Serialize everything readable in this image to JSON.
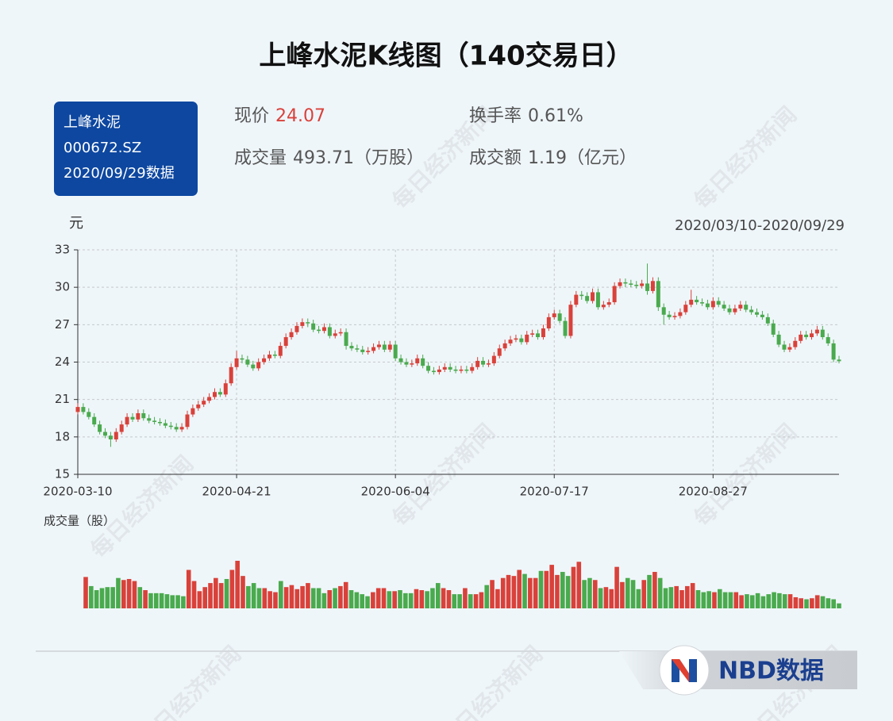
{
  "header": {
    "title": "上峰水泥K线图（140交易日）",
    "stock_name": "上峰水泥",
    "code": "000672.SZ",
    "data_date": "2020/09/29数据",
    "stats": [
      {
        "label": "现价",
        "value": "24.07"
      },
      {
        "label": "换手率",
        "value": "0.61%"
      },
      {
        "label": "成交量",
        "value": "493.71（万股）"
      },
      {
        "label": "成交额",
        "value": "1.19（亿元）"
      }
    ]
  },
  "watermark": "每日经济新闻",
  "logo": "NBD数据",
  "chart_data": {
    "type": "candlestick",
    "y_unit": "元",
    "date_range": "2020/03/10-2020/09/29",
    "up_color": "#d9413a",
    "down_color": "#4aaa4e",
    "grid": true,
    "ylim": [
      15,
      33
    ],
    "yticks": [
      15,
      18,
      21,
      24,
      27,
      30,
      33
    ],
    "categories": [
      "2020-03-10",
      null,
      null,
      null,
      null,
      null,
      null,
      null,
      null,
      null,
      null,
      null,
      null,
      null,
      null,
      null,
      null,
      null,
      null,
      null,
      null,
      null,
      null,
      null,
      null,
      null,
      null,
      null,
      null,
      "2020-04-21",
      null,
      null,
      null,
      null,
      null,
      null,
      null,
      null,
      null,
      null,
      null,
      null,
      null,
      null,
      null,
      null,
      null,
      null,
      null,
      null,
      null,
      null,
      null,
      null,
      null,
      null,
      null,
      null,
      "2020-06-04",
      null,
      null,
      null,
      null,
      null,
      null,
      null,
      null,
      null,
      null,
      null,
      null,
      null,
      null,
      null,
      null,
      null,
      null,
      null,
      null,
      null,
      null,
      null,
      null,
      null,
      null,
      null,
      null,
      "2020-07-17",
      null,
      null,
      null,
      null,
      null,
      null,
      null,
      null,
      null,
      null,
      null,
      null,
      null,
      null,
      null,
      null,
      null,
      null,
      null,
      null,
      null,
      null,
      null,
      null,
      null,
      null,
      null,
      null,
      "2020-08-27",
      null,
      null,
      null,
      null,
      null,
      null,
      null,
      null,
      null,
      null,
      null,
      null,
      null,
      null,
      null,
      null,
      null,
      null,
      null,
      null,
      null,
      null,
      null
    ],
    "open": [
      20.0,
      20.4,
      20.0,
      19.6,
      19.0,
      18.4,
      18.1,
      17.8,
      18.4,
      19.0,
      19.6,
      19.4,
      19.9,
      19.5,
      19.3,
      19.2,
      19.1,
      18.9,
      18.8,
      18.6,
      18.8,
      19.8,
      20.3,
      20.6,
      20.9,
      21.2,
      21.6,
      21.4,
      22.3,
      23.6,
      24.3,
      24.2,
      23.8,
      23.5,
      24.0,
      24.3,
      24.6,
      24.5,
      25.3,
      26.0,
      26.4,
      26.9,
      27.2,
      27.1,
      26.6,
      26.5,
      26.8,
      26.1,
      26.3,
      26.4,
      25.3,
      25.1,
      25.0,
      24.8,
      24.9,
      25.2,
      25.4,
      25.0,
      25.4,
      24.3,
      24.0,
      23.8,
      23.9,
      24.3,
      23.7,
      23.3,
      23.2,
      23.4,
      23.6,
      23.4,
      23.3,
      23.4,
      23.3,
      23.6,
      24.1,
      23.8,
      23.9,
      24.5,
      25.1,
      25.5,
      25.8,
      25.9,
      25.6,
      26.2,
      26.3,
      26.0,
      26.7,
      27.6,
      27.9,
      27.3,
      26.1,
      28.6,
      29.4,
      29.3,
      28.9,
      29.6,
      28.4,
      28.6,
      28.8,
      30.1,
      30.4,
      30.3,
      30.2,
      30.1,
      30.3,
      29.7,
      30.5,
      28.4,
      27.8,
      27.6,
      27.7,
      28.0,
      28.6,
      29.0,
      28.8,
      28.7,
      28.4,
      28.9,
      28.6,
      28.3,
      28.0,
      28.3,
      28.6,
      28.2,
      28.0,
      27.8,
      27.6,
      27.1,
      26.2,
      25.4,
      25.0,
      25.2,
      25.7,
      26.2,
      26.0,
      26.3,
      26.6,
      26.0,
      25.5,
      24.2
    ],
    "close": [
      20.4,
      20.0,
      19.6,
      19.0,
      18.4,
      18.1,
      17.8,
      18.4,
      19.0,
      19.6,
      19.4,
      19.9,
      19.5,
      19.3,
      19.2,
      19.1,
      18.9,
      18.8,
      18.6,
      18.8,
      19.8,
      20.3,
      20.6,
      20.9,
      21.2,
      21.6,
      21.4,
      22.3,
      23.6,
      24.3,
      24.2,
      23.8,
      23.5,
      24.0,
      24.3,
      24.6,
      24.5,
      25.3,
      26.0,
      26.4,
      26.9,
      27.2,
      27.1,
      26.6,
      26.5,
      26.8,
      26.1,
      26.3,
      26.4,
      25.3,
      25.1,
      25.0,
      24.8,
      24.9,
      25.2,
      25.4,
      25.0,
      25.4,
      24.3,
      24.0,
      23.8,
      23.9,
      24.3,
      23.7,
      23.3,
      23.2,
      23.4,
      23.6,
      23.4,
      23.3,
      23.4,
      23.3,
      23.6,
      24.1,
      23.8,
      23.9,
      24.5,
      25.1,
      25.5,
      25.8,
      25.9,
      25.6,
      26.2,
      26.3,
      26.0,
      26.7,
      27.6,
      27.9,
      27.3,
      26.1,
      28.6,
      29.4,
      29.3,
      28.9,
      29.6,
      28.4,
      28.6,
      28.8,
      30.1,
      30.4,
      30.3,
      30.2,
      30.1,
      30.3,
      29.7,
      30.5,
      28.4,
      27.8,
      27.6,
      27.7,
      28.0,
      28.6,
      29.0,
      28.8,
      28.7,
      28.4,
      28.9,
      28.6,
      28.3,
      28.0,
      28.3,
      28.6,
      28.2,
      28.0,
      27.8,
      27.6,
      27.1,
      26.2,
      25.4,
      25.0,
      25.2,
      25.7,
      26.2,
      26.0,
      26.3,
      26.6,
      26.0,
      25.5,
      24.2,
      24.07
    ],
    "low": [
      19.8,
      19.8,
      19.4,
      18.8,
      18.2,
      17.9,
      17.2,
      17.6,
      18.2,
      18.8,
      19.2,
      19.2,
      19.3,
      19.1,
      19.0,
      18.9,
      18.7,
      18.6,
      18.4,
      18.4,
      18.6,
      19.6,
      20.1,
      20.4,
      20.7,
      21.0,
      21.2,
      21.2,
      22.1,
      23.4,
      23.9,
      23.6,
      23.3,
      23.3,
      23.8,
      24.1,
      24.3,
      24.3,
      25.1,
      25.8,
      26.2,
      26.7,
      26.8,
      26.4,
      26.3,
      26.3,
      25.9,
      25.9,
      26.1,
      25.0,
      24.9,
      24.8,
      24.6,
      24.6,
      24.7,
      25.0,
      24.8,
      24.8,
      24.1,
      23.8,
      23.6,
      23.6,
      23.7,
      23.5,
      23.1,
      23.0,
      23.0,
      23.2,
      23.2,
      23.1,
      23.1,
      23.1,
      23.1,
      23.4,
      23.6,
      23.6,
      23.7,
      24.3,
      24.9,
      25.3,
      25.6,
      25.4,
      25.4,
      26.0,
      25.8,
      25.8,
      26.5,
      27.4,
      27.1,
      25.9,
      25.9,
      28.4,
      29.0,
      28.7,
      28.7,
      28.2,
      28.2,
      28.4,
      28.6,
      29.9,
      30.0,
      30.0,
      29.9,
      29.9,
      29.4,
      29.5,
      28.1,
      27.0,
      27.4,
      27.4,
      27.5,
      27.8,
      28.4,
      28.6,
      28.5,
      28.2,
      28.2,
      28.4,
      28.1,
      27.8,
      27.8,
      28.1,
      28.0,
      27.8,
      27.6,
      27.4,
      26.9,
      26.0,
      25.2,
      24.8,
      24.8,
      25.0,
      25.5,
      25.8,
      25.8,
      26.1,
      25.8,
      25.3,
      24.0,
      23.9
    ],
    "high": [
      20.7,
      20.7,
      20.3,
      19.9,
      19.3,
      18.7,
      18.4,
      18.7,
      19.3,
      19.9,
      19.9,
      20.2,
      20.2,
      19.8,
      19.6,
      19.5,
      19.4,
      19.2,
      19.1,
      19.1,
      20.1,
      20.6,
      20.9,
      21.2,
      21.5,
      21.9,
      21.9,
      22.6,
      23.9,
      24.9,
      24.6,
      24.5,
      24.1,
      24.3,
      24.6,
      24.9,
      24.9,
      25.6,
      26.3,
      26.7,
      27.2,
      27.5,
      27.5,
      27.4,
      26.9,
      27.1,
      27.1,
      26.6,
      26.7,
      26.7,
      25.6,
      25.4,
      25.3,
      25.2,
      25.5,
      25.7,
      25.7,
      25.7,
      25.7,
      24.6,
      24.3,
      24.2,
      24.6,
      24.6,
      24.0,
      23.6,
      23.7,
      23.9,
      23.9,
      23.7,
      23.7,
      23.7,
      23.9,
      24.4,
      24.4,
      24.2,
      24.8,
      25.4,
      25.8,
      26.1,
      26.2,
      26.2,
      26.5,
      26.6,
      26.6,
      27.0,
      27.9,
      28.2,
      28.2,
      27.6,
      28.9,
      29.7,
      29.7,
      29.6,
      29.9,
      29.9,
      28.9,
      29.1,
      30.4,
      30.7,
      30.7,
      30.6,
      30.5,
      30.6,
      31.9,
      30.8,
      30.8,
      28.7,
      28.1,
      28.0,
      28.3,
      28.9,
      29.8,
      29.3,
      29.1,
      29.0,
      29.2,
      29.2,
      28.9,
      28.6,
      28.6,
      28.9,
      28.9,
      28.5,
      28.3,
      28.1,
      27.9,
      27.4,
      26.5,
      25.7,
      25.5,
      26.0,
      26.5,
      26.5,
      26.6,
      26.9,
      26.9,
      26.3,
      25.8,
      24.5
    ],
    "volume": {
      "label": "成交量（股）",
      "values": [
        31000000.0,
        22000000.0,
        18000000.0,
        20000000.0,
        21000000.0,
        21000000.0,
        30000000.0,
        28000000.0,
        29000000.0,
        27000000.0,
        21000000.0,
        18000000.0,
        15000000.0,
        15000000.0,
        15000000.0,
        14000000.0,
        13000000.0,
        13000000.0,
        12000000.0,
        38000000.0,
        27000000.0,
        17000000.0,
        21000000.0,
        25000000.0,
        30000000.0,
        25000000.0,
        29000000.0,
        38000000.0,
        47000000.0,
        32000000.0,
        22000000.0,
        25000000.0,
        20000000.0,
        20000000.0,
        17000000.0,
        16000000.0,
        27000000.0,
        21000000.0,
        23000000.0,
        19000000.0,
        22000000.0,
        25000000.0,
        20000000.0,
        20000000.0,
        15000000.0,
        18000000.0,
        20000000.0,
        22000000.0,
        26000000.0,
        18000000.0,
        16000000.0,
        14000000.0,
        12000000.0,
        16000000.0,
        20000000.0,
        20000000.0,
        17000000.0,
        17000000.0,
        18000000.0,
        15000000.0,
        15000000.0,
        19000000.0,
        18000000.0,
        17000000.0,
        20000000.0,
        25000000.0,
        20000000.0,
        18000000.0,
        14000000.0,
        14000000.0,
        20000000.0,
        14000000.0,
        14000000.0,
        16000000.0,
        23000000.0,
        28000000.0,
        19000000.0,
        30000000.0,
        33000000.0,
        32000000.0,
        38000000.0,
        34000000.0,
        30000000.0,
        30000000.0,
        37000000.0,
        37000000.0,
        43000000.0,
        33000000.0,
        36000000.0,
        32000000.0,
        41000000.0,
        46000000.0,
        28000000.0,
        30000000.0,
        28000000.0,
        20000000.0,
        21000000.0,
        19000000.0,
        41000000.0,
        26000000.0,
        30000000.0,
        28000000.0,
        19000000.0,
        28000000.0,
        33000000.0,
        36000000.0,
        30000000.0,
        20000000.0,
        21000000.0,
        22000000.0,
        18000000.0,
        22000000.0,
        25000000.0,
        18000000.0,
        16000000.0,
        17000000.0,
        16000000.0,
        19000000.0,
        16000000.0,
        16000000.0,
        16000000.0,
        13000000.0,
        14000000.0,
        13000000.0,
        15000000.0,
        12000000.0,
        14000000.0,
        16000000.0,
        15000000.0,
        14000000.0,
        14000000.0,
        11000000.0,
        10000000.0,
        9000000.0,
        10000000.0,
        13000000.0,
        12000000.0,
        10000000.0,
        9000000.0,
        4937100
      ]
    }
  }
}
